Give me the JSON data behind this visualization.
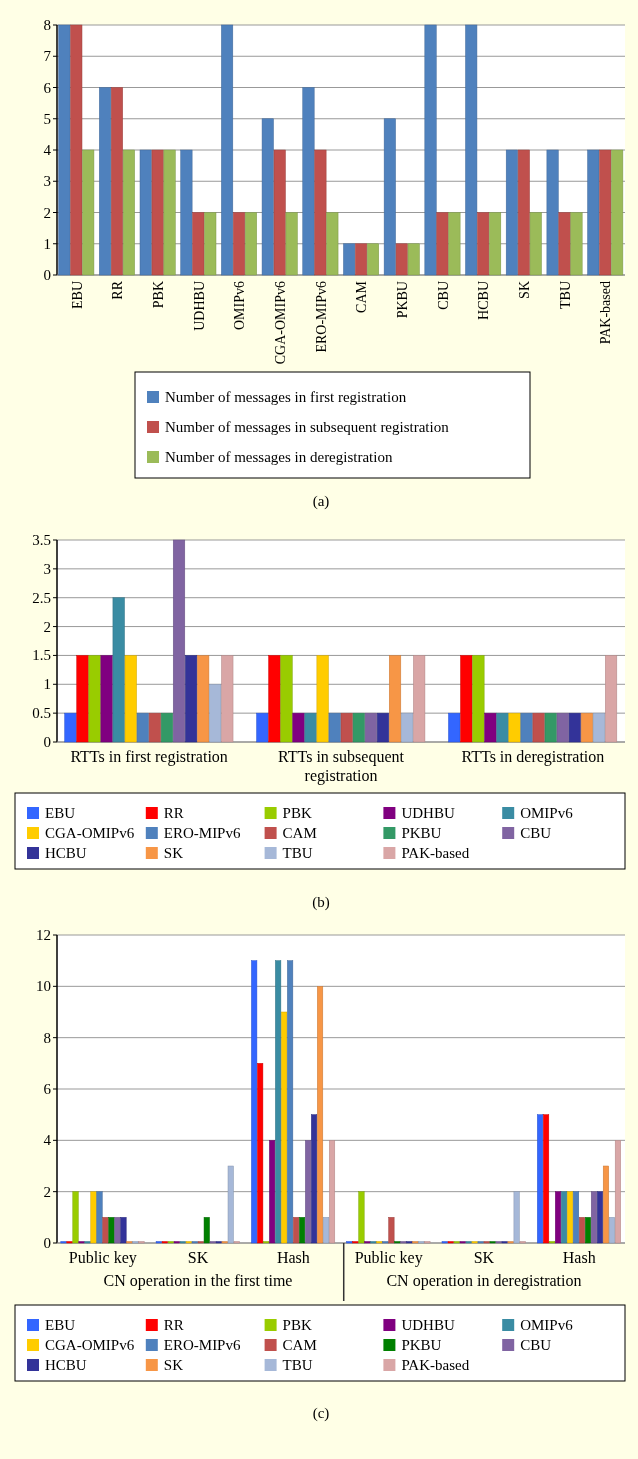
{
  "chart_data": [
    {
      "type": "bar",
      "categories": [
        "EBU",
        "RR",
        "PBK",
        "UDHBU",
        "OMIPv6",
        "CGA-OMIPv6",
        "ERO-MIPv6",
        "CAM",
        "PKBU",
        "CBU",
        "HCBU",
        "SK",
        "TBU",
        "PAK-based"
      ],
      "series": [
        {
          "name": "Number of messages in first registration",
          "color": "#4f81bd",
          "values": [
            8,
            6,
            4,
            4,
            8,
            5,
            6,
            1,
            5,
            8,
            8,
            4,
            4,
            4
          ]
        },
        {
          "name": "Number of messages in subsequent registration",
          "color": "#c0504d",
          "values": [
            8,
            6,
            4,
            2,
            2,
            4,
            4,
            1,
            1,
            2,
            2,
            4,
            2,
            4
          ]
        },
        {
          "name": "Number of messages in deregistration",
          "color": "#9bbb59",
          "values": [
            4,
            4,
            4,
            2,
            2,
            2,
            2,
            1,
            1,
            2,
            2,
            2,
            2,
            4
          ]
        }
      ],
      "ylim": [
        0,
        8
      ],
      "yticks": [
        0,
        1,
        2,
        3,
        4,
        5,
        6,
        7,
        8
      ],
      "grid": "y",
      "legend": "bottom",
      "annotations": [
        "(a)"
      ]
    },
    {
      "type": "bar",
      "categories": [
        "RTTs in first registration",
        "RTTs in subsequent registration",
        "RTTs in deregistration"
      ],
      "series": [
        {
          "name": "EBU",
          "color": "#3366ff",
          "values": [
            0.5,
            0.5,
            0.5
          ]
        },
        {
          "name": "RR",
          "color": "#ff0000",
          "values": [
            1.5,
            1.5,
            1.5
          ]
        },
        {
          "name": "PBK",
          "color": "#99cc00",
          "values": [
            1.5,
            1.5,
            1.5
          ]
        },
        {
          "name": "UDHBU",
          "color": "#800080",
          "values": [
            1.5,
            0.5,
            0.5
          ]
        },
        {
          "name": "OMIPv6",
          "color": "#3a8ca3",
          "values": [
            2.5,
            0.5,
            0.5
          ]
        },
        {
          "name": "CGA-OMIPv6",
          "color": "#ffcc00",
          "values": [
            1.5,
            1.5,
            0.5
          ]
        },
        {
          "name": "ERO-MIPv6",
          "color": "#4f81bd",
          "values": [
            0.5,
            0.5,
            0.5
          ]
        },
        {
          "name": "CAM",
          "color": "#c0504d",
          "values": [
            0.5,
            0.5,
            0.5
          ]
        },
        {
          "name": "PKBU",
          "color": "#339966",
          "values": [
            0.5,
            0.5,
            0.5
          ]
        },
        {
          "name": "CBU",
          "color": "#8064a2",
          "values": [
            3.5,
            0.5,
            0.5
          ]
        },
        {
          "name": "HCBU",
          "color": "#333399",
          "values": [
            1.5,
            0.5,
            0.5
          ]
        },
        {
          "name": "SK",
          "color": "#f79646",
          "values": [
            1.5,
            1.5,
            0.5
          ]
        },
        {
          "name": "TBU",
          "color": "#a6b8d8",
          "values": [
            1,
            0.5,
            0.5
          ]
        },
        {
          "name": "PAK-based",
          "color": "#d9a6a6",
          "values": [
            1.5,
            1.5,
            1.5
          ]
        }
      ],
      "ylim": [
        0,
        3.5
      ],
      "yticks": [
        0,
        0.5,
        1,
        1.5,
        2,
        2.5,
        3,
        3.5
      ],
      "grid": "y",
      "legend": "bottom",
      "annotations": [
        "(b)"
      ]
    },
    {
      "type": "bar",
      "categories": [
        "Public key",
        "SK",
        "Hash",
        "Public key",
        "SK",
        "Hash"
      ],
      "series": [
        {
          "name": "EBU",
          "color": "#3366ff",
          "values": [
            0,
            0,
            11,
            0,
            0,
            5
          ]
        },
        {
          "name": "RR",
          "color": "#ff0000",
          "values": [
            0,
            0,
            7,
            0,
            0,
            5
          ]
        },
        {
          "name": "PBK",
          "color": "#99cc00",
          "values": [
            2,
            0,
            0,
            2,
            0,
            0
          ]
        },
        {
          "name": "UDHBU",
          "color": "#800080",
          "values": [
            0,
            0,
            4,
            0,
            0,
            2
          ]
        },
        {
          "name": "OMIPv6",
          "color": "#3a8ca3",
          "values": [
            0,
            0,
            11,
            0,
            0,
            2
          ]
        },
        {
          "name": "CGA-OMIPv6",
          "color": "#ffcc00",
          "values": [
            2,
            0,
            9,
            0,
            0,
            2
          ]
        },
        {
          "name": "ERO-MIPv6",
          "color": "#4f81bd",
          "values": [
            2,
            0,
            11,
            0,
            0,
            2
          ]
        },
        {
          "name": "CAM",
          "color": "#c0504d",
          "values": [
            1,
            0,
            1,
            1,
            0,
            1
          ]
        },
        {
          "name": "PKBU",
          "color": "#008000",
          "values": [
            1,
            1,
            1,
            0,
            0,
            1
          ]
        },
        {
          "name": "CBU",
          "color": "#8064a2",
          "values": [
            1,
            0,
            4,
            0,
            0,
            2
          ]
        },
        {
          "name": "HCBU",
          "color": "#333399",
          "values": [
            1,
            0,
            5,
            0,
            0,
            2
          ]
        },
        {
          "name": "SK",
          "color": "#f79646",
          "values": [
            0,
            0,
            10,
            0,
            0,
            3
          ]
        },
        {
          "name": "TBU",
          "color": "#a6b8d8",
          "values": [
            0,
            3,
            1,
            0,
            2,
            1
          ]
        },
        {
          "name": "PAK-based",
          "color": "#d9a6a6",
          "values": [
            0,
            0,
            4,
            0,
            0,
            4
          ]
        }
      ],
      "ylim": [
        0,
        12
      ],
      "yticks": [
        0,
        2,
        4,
        6,
        8,
        10,
        12
      ],
      "grid": "y",
      "legend": "bottom",
      "annotations": [
        "CN operation in the first time",
        "CN operation in deregistration",
        "(c)"
      ]
    }
  ]
}
